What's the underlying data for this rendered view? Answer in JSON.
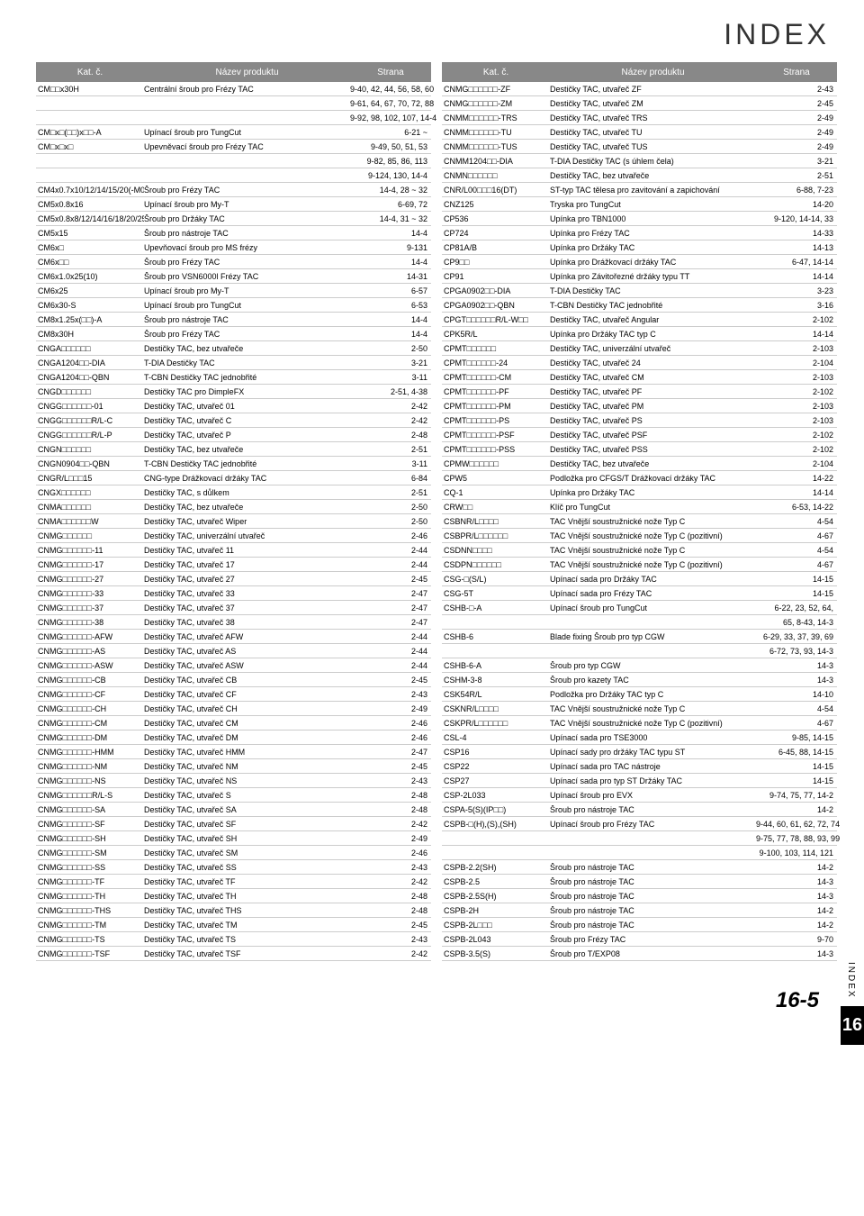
{
  "index_title": "INDEX",
  "section_number": "16",
  "side_label": "INDEX",
  "footer": "16-5",
  "header": {
    "code": "Kat. č.",
    "name": "Název produktu",
    "page": "Strana"
  },
  "left": [
    {
      "code": "CM□□x30H",
      "name": "Centrální šroub pro Frézy TAC",
      "page": "9-40, 42, 44, 56, 58, 60"
    },
    {
      "code": "",
      "name": "",
      "page": "9-61, 64, 67, 70, 72, 88"
    },
    {
      "code": "",
      "name": "",
      "page": "9-92, 98, 102, 107, 14-4"
    },
    {
      "code": "CM□x□(□□)x□□-A",
      "name": "Upínací šroub pro TungCut",
      "page": "6-21 ~"
    },
    {
      "code": "CM□x□x□",
      "name": "Upevněvací šroub pro Frézy TAC",
      "page": "9-49, 50, 51, 53"
    },
    {
      "code": "",
      "name": "",
      "page": "9-82, 85, 86, 113"
    },
    {
      "code": "",
      "name": "",
      "page": "9-124, 130, 14-4"
    },
    {
      "code": "CM4x0.7x10/12/14/15/20(-M0-A)",
      "name": "Šroub pro Frézy TAC",
      "page": "14-4, 28 ~ 32"
    },
    {
      "code": "CM5x0.8x16",
      "name": "Upínací šroub pro My-T",
      "page": "6-69, 72"
    },
    {
      "code": "CM5x0.8x8/12/14/16/18/20/25(-A)",
      "name": "Šroub pro Držáky TAC",
      "page": "14-4, 31 ~ 32"
    },
    {
      "code": "CM5x15",
      "name": "Šroub pro nástroje TAC",
      "page": "14-4"
    },
    {
      "code": "CM6x□",
      "name": "Upevňovací šroub  pro MS frézy",
      "page": "9-131"
    },
    {
      "code": "CM6x□□",
      "name": "Šroub pro Frézy TAC",
      "page": "14-4"
    },
    {
      "code": "CM6x1.0x25(10)",
      "name": "Šroub pro VSN6000l Frézy TAC",
      "page": "14-31"
    },
    {
      "code": "CM6x25",
      "name": "Upínací šroub pro My-T",
      "page": "6-57"
    },
    {
      "code": "CM6x30-S",
      "name": "Upínací šroub pro TungCut",
      "page": "6-53"
    },
    {
      "code": "CM8x1.25x(□□)-A",
      "name": "Šroub pro nástroje TAC",
      "page": "14-4"
    },
    {
      "code": "CM8x30H",
      "name": "Šroub pro Frézy TAC",
      "page": "14-4"
    },
    {
      "code": "CNGA□□□□□□",
      "name": "Destičky TAC, bez utvařeče",
      "page": "2-50"
    },
    {
      "code": "CNGA1204□□-DIA",
      "name": "T-DIA Destičky TAC",
      "page": "3-21"
    },
    {
      "code": "CNGA1204□□-QBN",
      "name": "T-CBN Destičky TAC jednobřité",
      "page": "3-11"
    },
    {
      "code": "CNGD□□□□□□",
      "name": "Destičky TAC pro DimpleFX",
      "page": "2-51, 4-38"
    },
    {
      "code": "CNGG□□□□□□-01",
      "name": "Destičky TAC, utvařeč 01",
      "page": "2-42"
    },
    {
      "code": "CNGG□□□□□□R/L-C",
      "name": "Destičky TAC, utvařeč C",
      "page": "2-42"
    },
    {
      "code": "CNGG□□□□□□R/L-P",
      "name": "Destičky TAC, utvařeč P",
      "page": "2-48"
    },
    {
      "code": "CNGN□□□□□□",
      "name": "Destičky TAC, bez utvařeče",
      "page": "2-51"
    },
    {
      "code": "CNGN0904□□-QBN",
      "name": "T-CBN Destičky TAC jednobřité",
      "page": "3-11"
    },
    {
      "code": "CNGR/L□□□15",
      "name": "CNG-type Drážkovací držáky TAC",
      "page": "6-84"
    },
    {
      "code": "CNGX□□□□□□",
      "name": "Destičky TAC, s důlkem",
      "page": "2-51"
    },
    {
      "code": "CNMA□□□□□□",
      "name": "Destičky TAC, bez utvařeče",
      "page": "2-50"
    },
    {
      "code": "CNMA□□□□□□W",
      "name": "Destičky TAC, utvařeč Wiper",
      "page": "2-50"
    },
    {
      "code": "CNMG□□□□□□",
      "name": "Destičky TAC, univerzální utvařeč",
      "page": "2-46"
    },
    {
      "code": "CNMG□□□□□□-11",
      "name": "Destičky TAC, utvařeč 11",
      "page": "2-44"
    },
    {
      "code": "CNMG□□□□□□-17",
      "name": "Destičky TAC, utvařeč 17",
      "page": "2-44"
    },
    {
      "code": "CNMG□□□□□□-27",
      "name": "Destičky TAC, utvařeč 27",
      "page": "2-45"
    },
    {
      "code": "CNMG□□□□□□-33",
      "name": "Destičky TAC, utvařeč 33",
      "page": "2-47"
    },
    {
      "code": "CNMG□□□□□□-37",
      "name": "Destičky TAC, utvařeč 37",
      "page": "2-47"
    },
    {
      "code": "CNMG□□□□□□-38",
      "name": "Destičky TAC, utvařeč 38",
      "page": "2-47"
    },
    {
      "code": "CNMG□□□□□□-AFW",
      "name": "Destičky TAC, utvařeč AFW",
      "page": "2-44"
    },
    {
      "code": "CNMG□□□□□□-AS",
      "name": "Destičky TAC, utvařeč AS",
      "page": "2-44"
    },
    {
      "code": "CNMG□□□□□□-ASW",
      "name": "Destičky TAC, utvařeč ASW",
      "page": "2-44"
    },
    {
      "code": "CNMG□□□□□□-CB",
      "name": "Destičky TAC, utvařeč CB",
      "page": "2-45"
    },
    {
      "code": "CNMG□□□□□□-CF",
      "name": "Destičky TAC, utvařeč CF",
      "page": "2-43"
    },
    {
      "code": "CNMG□□□□□□-CH",
      "name": "Destičky TAC, utvařeč CH",
      "page": "2-49"
    },
    {
      "code": "CNMG□□□□□□-CM",
      "name": "Destičky TAC, utvařeč CM",
      "page": "2-46"
    },
    {
      "code": "CNMG□□□□□□-DM",
      "name": "Destičky TAC, utvařeč DM",
      "page": "2-46"
    },
    {
      "code": "CNMG□□□□□□-HMM",
      "name": "Destičky TAC, utvařeč HMM",
      "page": "2-47"
    },
    {
      "code": "CNMG□□□□□□-NM",
      "name": "Destičky TAC, utvařeč NM",
      "page": "2-45"
    },
    {
      "code": "CNMG□□□□□□-NS",
      "name": "Destičky TAC, utvařeč NS",
      "page": "2-43"
    },
    {
      "code": "CNMG□□□□□□R/L-S",
      "name": "Destičky TAC, utvařeč S",
      "page": "2-48"
    },
    {
      "code": "CNMG□□□□□□-SA",
      "name": "Destičky TAC, utvařeč SA",
      "page": "2-48"
    },
    {
      "code": "CNMG□□□□□□-SF",
      "name": "Destičky TAC, utvařeč SF",
      "page": "2-42"
    },
    {
      "code": "CNMG□□□□□□-SH",
      "name": "Destičky TAC, utvařeč SH",
      "page": "2-49"
    },
    {
      "code": "CNMG□□□□□□-SM",
      "name": "Destičky TAC, utvařeč SM",
      "page": "2-46"
    },
    {
      "code": "CNMG□□□□□□-SS",
      "name": "Destičky TAC, utvařeč SS",
      "page": "2-43"
    },
    {
      "code": "CNMG□□□□□□-TF",
      "name": "Destičky TAC, utvařeč TF",
      "page": "2-42"
    },
    {
      "code": "CNMG□□□□□□-TH",
      "name": "Destičky TAC, utvařeč TH",
      "page": "2-48"
    },
    {
      "code": "CNMG□□□□□□-THS",
      "name": "Destičky TAC, utvařeč THS",
      "page": "2-48"
    },
    {
      "code": "CNMG□□□□□□-TM",
      "name": "Destičky TAC, utvařeč TM",
      "page": "2-45"
    },
    {
      "code": "CNMG□□□□□□-TS",
      "name": "Destičky TAC, utvařeč TS",
      "page": "2-43"
    },
    {
      "code": "CNMG□□□□□□-TSF",
      "name": "Destičky TAC, utvařeč TSF",
      "page": "2-42"
    }
  ],
  "right": [
    {
      "code": "CNMG□□□□□□-ZF",
      "name": "Destičky TAC, utvařeč ZF",
      "page": "2-43"
    },
    {
      "code": "CNMG□□□□□□-ZM",
      "name": "Destičky TAC, utvařeč ZM",
      "page": "2-45"
    },
    {
      "code": "CNMM□□□□□□-TRS",
      "name": "Destičky TAC, utvařeč TRS",
      "page": "2-49"
    },
    {
      "code": "CNMM□□□□□□-TU",
      "name": "Destičky TAC, utvařeč TU",
      "page": "2-49"
    },
    {
      "code": "CNMM□□□□□□-TUS",
      "name": "Destičky TAC, utvařeč TUS",
      "page": "2-49"
    },
    {
      "code": "CNMM1204□□-DIA",
      "name": "T-DIA Destičky TAC (s úhlem čela)",
      "page": "3-21"
    },
    {
      "code": "CNMN□□□□□□",
      "name": "Destičky TAC, bez utvařeče",
      "page": "2-51"
    },
    {
      "code": "CNR/L00□□□16(DT)",
      "name": "ST-typ TAC tělesa pro zavitování a zapichování",
      "page": "6-88, 7-23"
    },
    {
      "code": "CNZ125",
      "name": "Tryska pro TungCut",
      "page": "14-20"
    },
    {
      "code": "CP536",
      "name": "Upínka pro TBN1000",
      "page": "9-120, 14-14, 33"
    },
    {
      "code": "CP724",
      "name": "Upínka pro Frézy TAC",
      "page": "14-33"
    },
    {
      "code": "CP81A/B",
      "name": "Upínka pro Držáky TAC",
      "page": "14-13"
    },
    {
      "code": "CP9□□",
      "name": "Upínka pro Drážkovací držáky TAC",
      "page": "6-47, 14-14"
    },
    {
      "code": "CP91",
      "name": "Upínka pro Závitořezné držáky typu TT",
      "page": "14-14"
    },
    {
      "code": "CPGA0902□□-DIA",
      "name": "T-DIA Destičky TAC",
      "page": "3-23"
    },
    {
      "code": "CPGA0902□□-QBN",
      "name": "T-CBN Destičky TAC jednobřité",
      "page": "3-16"
    },
    {
      "code": "CPGT□□□□□□R/L-W□□",
      "name": "Destičky TAC, utvařeč Angular",
      "page": "2-102"
    },
    {
      "code": "CPK5R/L",
      "name": "Upínka pro Držáky TAC typ C",
      "page": "14-14"
    },
    {
      "code": "CPMT□□□□□□",
      "name": "Destičky TAC, univerzální utvařeč",
      "page": "2-103"
    },
    {
      "code": "CPMT□□□□□□-24",
      "name": "Destičky TAC, utvařeč 24",
      "page": "2-104"
    },
    {
      "code": "CPMT□□□□□□-CM",
      "name": "Destičky TAC, utvařeč CM",
      "page": "2-103"
    },
    {
      "code": "CPMT□□□□□□-PF",
      "name": "Destičky TAC, utvařeč PF",
      "page": "2-102"
    },
    {
      "code": "CPMT□□□□□□-PM",
      "name": "Destičky TAC, utvařeč PM",
      "page": "2-103"
    },
    {
      "code": "CPMT□□□□□□-PS",
      "name": "Destičky TAC, utvařeč PS",
      "page": "2-103"
    },
    {
      "code": "CPMT□□□□□□-PSF",
      "name": "Destičky TAC, utvařeč PSF",
      "page": "2-102"
    },
    {
      "code": "CPMT□□□□□□-PSS",
      "name": "Destičky TAC, utvařeč PSS",
      "page": "2-102"
    },
    {
      "code": "CPMW□□□□□□",
      "name": "Destičky TAC, bez utvařeče",
      "page": "2-104"
    },
    {
      "code": "CPW5",
      "name": "Podložka pro CFGS/T Drážkovací držáky TAC",
      "page": "14-22"
    },
    {
      "code": "CQ-1",
      "name": "Upínka pro Držáky TAC",
      "page": "14-14"
    },
    {
      "code": "CRW□□",
      "name": "Klíč pro TungCut",
      "page": "6-53, 14-22"
    },
    {
      "code": "CSBNR/L□□□□",
      "name": "TAC  Vnější soustružnické nože Typ C",
      "page": "4-54"
    },
    {
      "code": "CSBPR/L□□□□□□",
      "name": "TAC  Vnější soustružnické nože Typ C (pozitivní)",
      "page": "4-67"
    },
    {
      "code": "CSDNN□□□□",
      "name": "TAC  Vnější soustružnické nože Typ C",
      "page": "4-54"
    },
    {
      "code": "CSDPN□□□□□□",
      "name": "TAC  Vnější soustružnické nože Typ C (pozitivní)",
      "page": "4-67"
    },
    {
      "code": "CSG-□(S/L)",
      "name": "Upínací sada pro Držáky TAC",
      "page": "14-15"
    },
    {
      "code": "CSG-5T",
      "name": "Upínací sada pro Frézy TAC",
      "page": "14-15"
    },
    {
      "code": "CSHB-□-A",
      "name": "Upínací šroub pro TungCut",
      "page": "6-22, 23, 52, 64,"
    },
    {
      "code": "",
      "name": "",
      "page": "65, 8-43, 14-3"
    },
    {
      "code": "CSHB-6",
      "name": "Blade fixing Šroub pro typ CGW",
      "page": "6-29, 33, 37, 39, 69"
    },
    {
      "code": "",
      "name": "",
      "page": "6-72, 73, 93, 14-3"
    },
    {
      "code": "CSHB-6-A",
      "name": "Šroub pro typ CGW",
      "page": "14-3"
    },
    {
      "code": "CSHM-3-8",
      "name": "Šroub pro kazety TAC",
      "page": "14-3"
    },
    {
      "code": "CSK54R/L",
      "name": "Podložka pro Držáky TAC typ C",
      "page": "14-10"
    },
    {
      "code": "CSKNR/L□□□□",
      "name": "TAC  Vnější soustružnické nože Typ C",
      "page": "4-54"
    },
    {
      "code": "CSKPR/L□□□□□□",
      "name": "TAC  Vnější soustružnické nože Typ C (pozitivní)",
      "page": "4-67"
    },
    {
      "code": "CSL-4",
      "name": "Upínací sada pro TSE3000",
      "page": "9-85, 14-15"
    },
    {
      "code": "CSP16",
      "name": "Upínací sady pro držáky TAC typu ST",
      "page": "6-45, 88, 14-15"
    },
    {
      "code": "CSP22",
      "name": "Upínací sada pro TAC nástroje",
      "page": "14-15"
    },
    {
      "code": "CSP27",
      "name": "Upínací sada pro typ ST Držáky TAC",
      "page": "14-15"
    },
    {
      "code": "CSP-2L033",
      "name": "Upínací šroub pro EVX",
      "page": "9-74, 75, 77, 14-2"
    },
    {
      "code": "CSPA-5(S)(IP□□)",
      "name": "Šroub pro nástroje TAC",
      "page": "14-2"
    },
    {
      "code": "CSPB-□(H),(S),(SH)",
      "name": "Upínací šroub pro Frézy TAC",
      "page": "9-44, 60, 61, 62, 72, 74"
    },
    {
      "code": "",
      "name": "",
      "page": "9-75, 77, 78, 88, 93, 99"
    },
    {
      "code": "",
      "name": "",
      "page": "9-100, 103, 114, 121"
    },
    {
      "code": "CSPB-2.2(SH)",
      "name": "Šroub pro nástroje TAC",
      "page": "14-2"
    },
    {
      "code": "CSPB-2.5",
      "name": "Šroub pro nástroje TAC",
      "page": "14-3"
    },
    {
      "code": "CSPB-2.5S(H)",
      "name": "Šroub pro nástroje TAC",
      "page": "14-3"
    },
    {
      "code": "CSPB-2H",
      "name": "Šroub pro nástroje TAC",
      "page": "14-2"
    },
    {
      "code": "CSPB-2L□□□",
      "name": "Šroub pro nástroje TAC",
      "page": "14-2"
    },
    {
      "code": "CSPB-2L043",
      "name": "Šroub pro Frézy TAC",
      "page": "9-70"
    },
    {
      "code": "CSPB-3.5(S)",
      "name": "Šroub pro T/EXP08",
      "page": "14-3"
    }
  ]
}
